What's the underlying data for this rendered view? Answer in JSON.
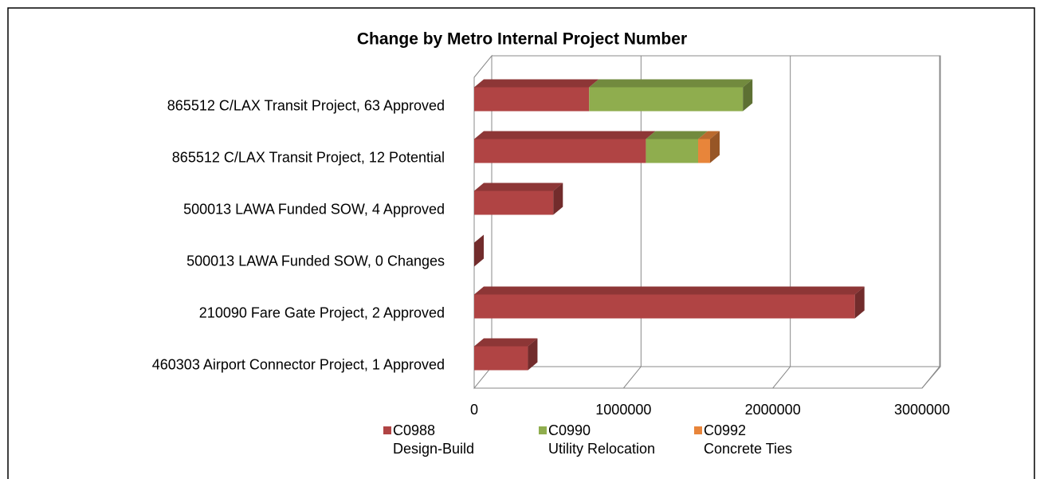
{
  "chart_data": {
    "type": "bar3d_stacked_horizontal",
    "title": "Change by Metro Internal Project Number",
    "categories": [
      "865512 C/LAX Transit Project, 63 Approved",
      "865512 C/LAX Transit Project, 12 Potential",
      "500013 LAWA Funded SOW, 4 Approved",
      "500013 LAWA Funded SOW, 0 Changes",
      "210090 Fare Gate Project, 2 Approved",
      "460303 Airport Connector Project, 1 Approved"
    ],
    "series": [
      {
        "name": "C0988 Design-Build",
        "color": "#b04444",
        "values": [
          770000,
          1150000,
          530000,
          0,
          2550000,
          360000
        ]
      },
      {
        "name": "C0990 Utility Relocation",
        "color": "#8fad4e",
        "values": [
          1030000,
          350000,
          0,
          0,
          0,
          0
        ]
      },
      {
        "name": "C0992 Concrete Ties",
        "color": "#e8853a",
        "values": [
          0,
          80000,
          0,
          0,
          0,
          0
        ]
      }
    ],
    "xlim": [
      0,
      3000000
    ],
    "xticks": [
      0,
      1000000,
      2000000,
      3000000
    ],
    "grid": true
  }
}
